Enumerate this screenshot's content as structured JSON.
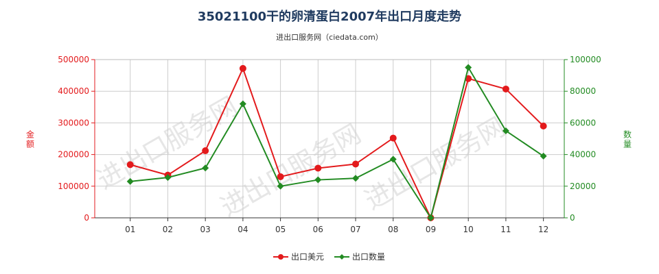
{
  "title": "35021100干的卵清蛋白2007年出口月度走势",
  "subtitle": "进出口服务网（ciedata.com）",
  "watermark": "进出口服务网",
  "colors": {
    "amount": "#e31a1c",
    "quantity": "#228b22",
    "grid": "#cccccc",
    "axis_left": "#e31a1c",
    "axis_right": "#228b22"
  },
  "chart_data": {
    "type": "line",
    "categories": [
      "01",
      "02",
      "03",
      "04",
      "05",
      "06",
      "07",
      "08",
      "09",
      "10",
      "11",
      "12"
    ],
    "series": [
      {
        "name": "出口美元",
        "axis": "left",
        "values": [
          168000,
          135000,
          212000,
          472000,
          130000,
          157000,
          170000,
          252000,
          0,
          440000,
          407000,
          290000
        ]
      },
      {
        "name": "出口数量",
        "axis": "right",
        "values": [
          23000,
          25500,
          31500,
          72000,
          20000,
          24000,
          25000,
          37000,
          0,
          95000,
          55000,
          39000
        ]
      }
    ],
    "ylabel_left": "金额",
    "ylabel_right": "数量",
    "ylim_left": [
      0,
      500000
    ],
    "ylim_right": [
      0,
      100000
    ],
    "yticks_left": [
      "0",
      "100000",
      "200000",
      "300000",
      "400000",
      "500000"
    ],
    "yticks_right": [
      "0",
      "20000",
      "40000",
      "60000",
      "80000",
      "100000"
    ],
    "grid": true,
    "legend_position": "bottom-center"
  }
}
